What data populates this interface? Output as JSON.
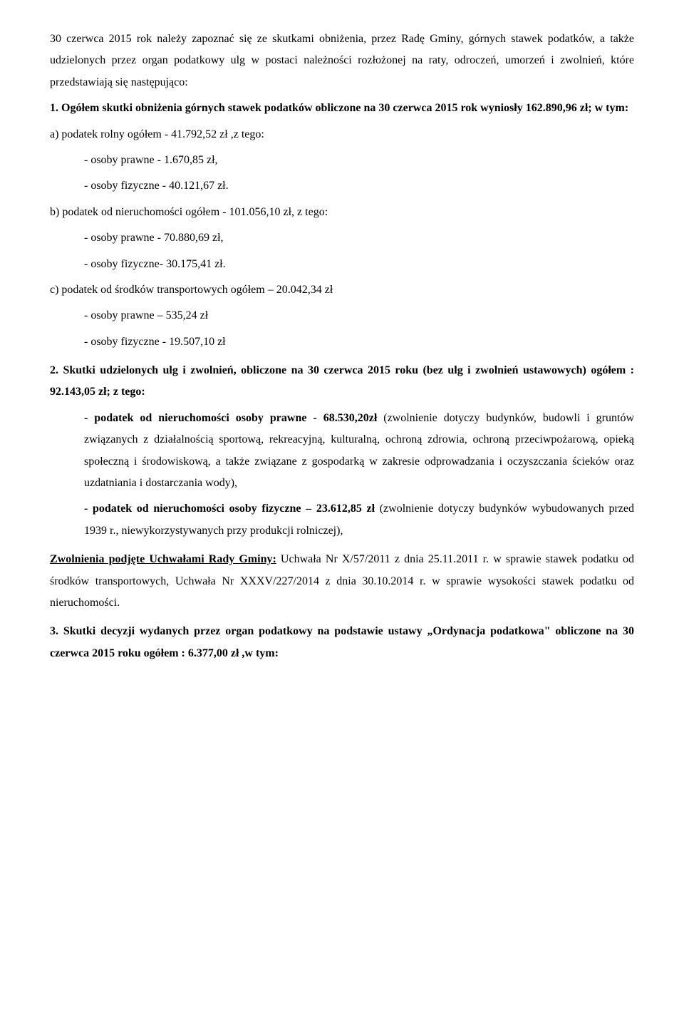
{
  "p1": "30 czerwca 2015 rok należy zapoznać się ze skutkami obniżenia, przez Radę Gminy, górnych stawek podatków, a także udzielonych przez organ podatkowy ulg w postaci należności rozłożonej na raty, odroczeń, umorzeń i zwolnień, które przedstawiają się następująco:",
  "p2_a": "1. Ogółem skutki obniżenia górnych stawek podatków obliczone na 30 czerwca 2015 rok wyniosły 162.890,96 zł; w tym:",
  "a_label": "a) podatek rolny ogółem -      41.792,52 zł ,z tego:",
  "a_op": "- osoby prawne -        1.670,85 zł,",
  "a_of": "- osoby fizyczne -      40.121,67 zł.",
  "b_label": "b) podatek od nieruchomości ogółem - 101.056,10 zł, z tego:",
  "b_op": "- osoby prawne -    70.880,69 zł,",
  "b_of": "- osoby fizyczne-    30.175,41 zł.",
  "c_label": "c) podatek od środków transportowych ogółem – 20.042,34 zł",
  "c_op": "- osoby prawne –       535,24 zł",
  "c_of": "- osoby fizyczne - 19.507,10 zł",
  "p3_a": "2. Skutki udzielonych ulg i zwolnień, obliczone na 30 czerwca 2015 roku (bez ulg i zwolnień ustawowych) ogółem : 92.143,05 zł; z tego:",
  "s1_bold": "- podatek od nieruchomości osoby prawne - 68.530,20zł ",
  "s1_rest": "(zwolnienie dotyczy budynków, budowli i gruntów związanych z działalnością sportową, rekreacyjną, kulturalną, ochroną zdrowia, ochroną przeciwpożarową, opieką społeczną i środowiskową, a także związane z gospodarką w zakresie odprowadzania i oczyszczania ścieków oraz uzdatniania i dostarczania wody),",
  "s2_bold": "- podatek od nieruchomości osoby fizyczne – 23.612,85 zł ",
  "s2_rest": "(zwolnienie dotyczy budynków wybudowanych przed 1939 r., niewykorzystywanych przy produkcji rolniczej),",
  "zw_bold": "Zwolnienia podjęte Uchwałami Rady Gminy:",
  "zw_rest": " Uchwała Nr X/57/2011 z dnia 25.11.2011 r. w sprawie stawek podatku od środków transportowych, Uchwała Nr XXXV/227/2014 z dnia 30.10.2014 r. w sprawie wysokości stawek podatku od nieruchomości.",
  "p4_a": "3. Skutki decyzji wydanych przez organ podatkowy na podstawie ustawy „Ordynacja podatkowa\" obliczone na 30 czerwca 2015 roku ogółem : 6.377,00 zł ,w tym:"
}
